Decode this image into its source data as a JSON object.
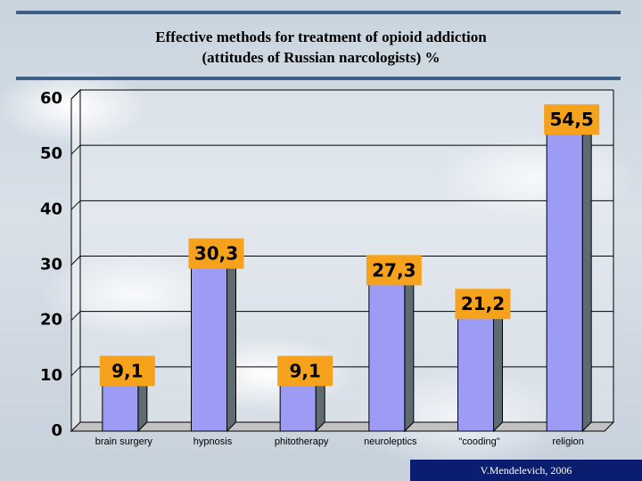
{
  "chart_data": {
    "type": "bar",
    "title": "Effective methods for treatment of opioid addiction",
    "subtitle": "(attitudes of Russian narcologists) %",
    "categories": [
      "brain surgery",
      "hypnosis",
      "phitotherapy",
      "neuroleptics",
      "\"cooding\"",
      "religion"
    ],
    "values": [
      9.1,
      30.3,
      9.1,
      27.3,
      21.2,
      54.5
    ],
    "data_labels": [
      "9,1",
      "30,3",
      "9,1",
      "27,3",
      "21,2",
      "54,5"
    ],
    "y_ticks": [
      "0",
      "10",
      "20",
      "30",
      "40",
      "50",
      "60"
    ],
    "ylim": [
      0,
      60
    ],
    "grid": true,
    "colors": {
      "bar_front": "#9c9cf4",
      "bar_side": "#5e6b70",
      "label_bg": "#f7a21c",
      "floor": "#c2c2c2",
      "wall": "#ffffff",
      "grid": "#000000"
    }
  },
  "credit": "V.Mendelevich, 2006"
}
